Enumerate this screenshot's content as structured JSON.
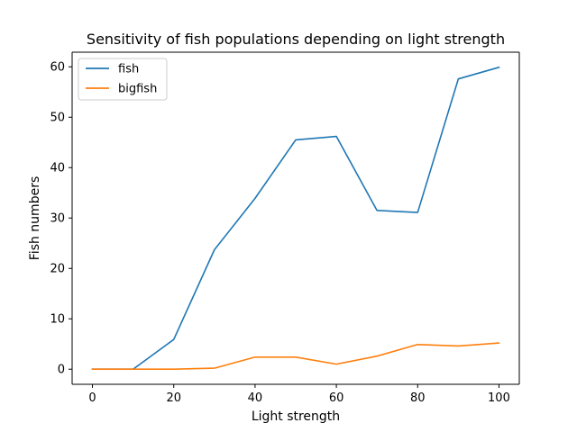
{
  "chart_data": {
    "type": "line",
    "title": "Sensitivity of fish populations depending on light strength",
    "xlabel": "Light strength",
    "ylabel": "Fish numbers",
    "x": [
      0,
      10,
      20,
      30,
      40,
      50,
      60,
      70,
      80,
      90,
      100
    ],
    "series": [
      {
        "name": "fish",
        "color": "#1f77b4",
        "values": [
          0,
          0,
          5.9,
          23.7,
          33.9,
          45.5,
          46.2,
          31.5,
          31.1,
          57.6,
          59.9
        ]
      },
      {
        "name": "bigfish",
        "color": "#ff7f0e",
        "values": [
          0,
          0,
          0,
          0.2,
          2.4,
          2.4,
          1.0,
          2.6,
          4.9,
          4.6,
          5.2
        ]
      }
    ],
    "xlim": [
      -5,
      105
    ],
    "ylim": [
      -2.995,
      62.9
    ],
    "xticks": [
      0,
      20,
      40,
      60,
      80,
      100
    ],
    "yticks": [
      0,
      10,
      20,
      30,
      40,
      50,
      60
    ],
    "grid": false,
    "legend_position": "top-left"
  }
}
